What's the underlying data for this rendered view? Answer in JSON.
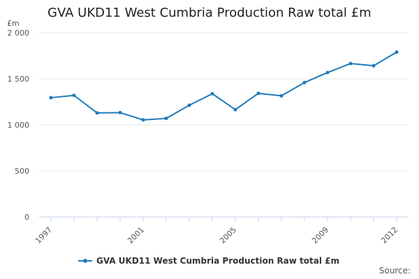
{
  "chart_data": {
    "type": "line",
    "title": "GVA UKD11 West Cumbria Production Raw total £m",
    "ylabel": "£m",
    "xlabel": "",
    "x": [
      1997,
      1998,
      1999,
      2000,
      2001,
      2002,
      2003,
      2004,
      2005,
      2006,
      2007,
      2008,
      2009,
      2010,
      2011,
      2012
    ],
    "x_ticks": [
      "1997",
      "2001",
      "2005",
      "2009",
      "2012"
    ],
    "y_ticks": [
      "0",
      "500",
      "1 000",
      "1 500",
      "2 000"
    ],
    "ylim": [
      0,
      2000
    ],
    "grid": true,
    "legend_position": "bottom",
    "series": [
      {
        "name": "GVA UKD11 West Cumbria Production Raw total £m",
        "color": "#1f7ab8",
        "values": [
          1295,
          1320,
          1130,
          1133,
          1054,
          1070,
          1213,
          1338,
          1165,
          1342,
          1315,
          1460,
          1568,
          1666,
          1642,
          1790
        ]
      }
    ]
  },
  "source_label": "Source:"
}
